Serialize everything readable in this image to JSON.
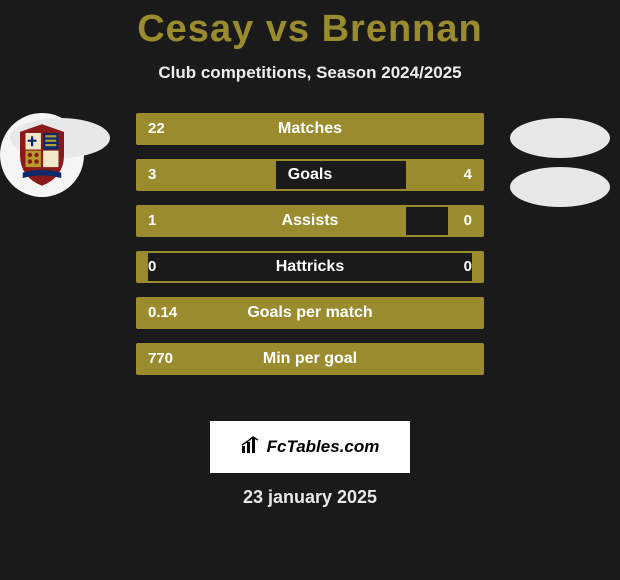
{
  "title_color": "#9a8c2e",
  "player1": "Cesay",
  "player2": "Brennan",
  "subtitle": "Club competitions, Season 2024/2025",
  "bars": [
    {
      "label": "Matches",
      "left": "22",
      "right": "",
      "left_pct": 100,
      "right_pct": 0
    },
    {
      "label": "Goals",
      "left": "3",
      "right": "4",
      "left_pct": 40,
      "right_pct": 22
    },
    {
      "label": "Assists",
      "left": "1",
      "right": "0",
      "left_pct": 78,
      "right_pct": 10
    },
    {
      "label": "Hattricks",
      "left": "0",
      "right": "0",
      "left_pct": 3,
      "right_pct": 3
    },
    {
      "label": "Goals per match",
      "left": "0.14",
      "right": "",
      "left_pct": 100,
      "right_pct": 0
    },
    {
      "label": "Min per goal",
      "left": "770",
      "right": "",
      "left_pct": 100,
      "right_pct": 0
    }
  ],
  "attribution": "FcTables.com",
  "date": "23 january 2025",
  "crest_colors": {
    "shield_outline": "#8a1a1a",
    "q1": "#f0e8c8",
    "q2": "#0a2a6a",
    "q3": "#b89a2e",
    "q4": "#f0e8c8",
    "ribbon": "#0a2a6a"
  }
}
